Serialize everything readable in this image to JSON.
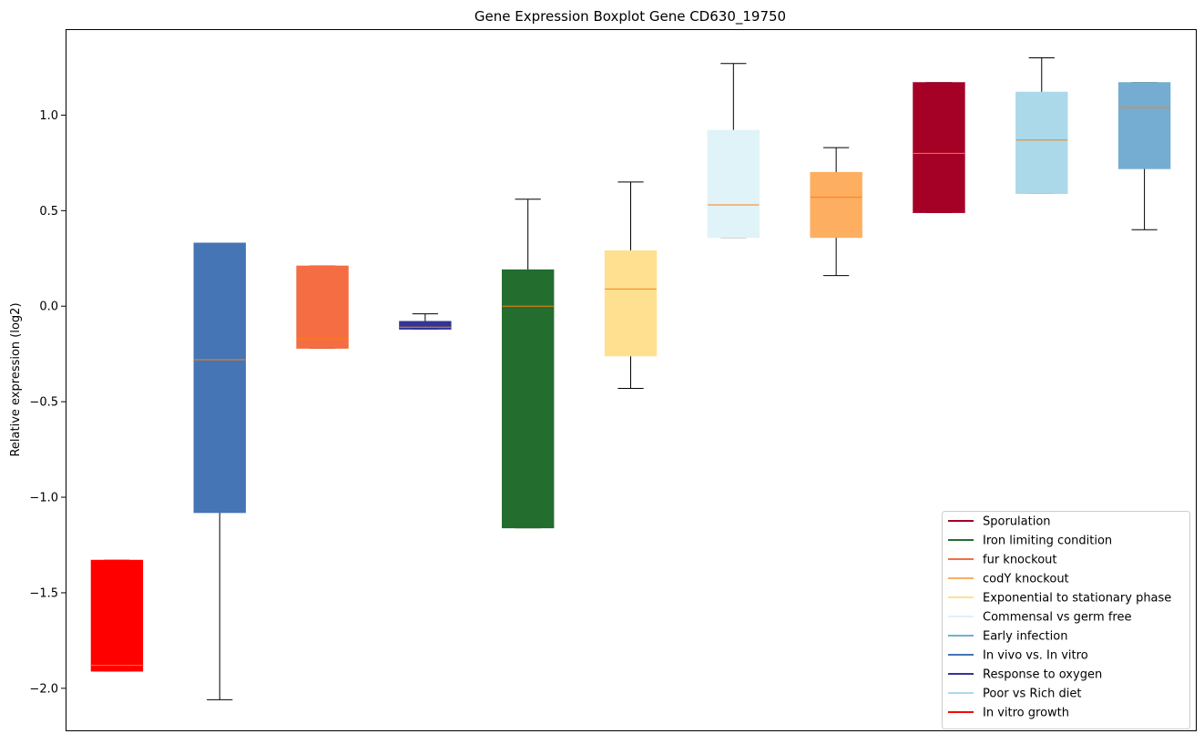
{
  "chart_data": {
    "type": "box",
    "title": "Gene Expression Boxplot Gene CD630_19750",
    "xlabel": "",
    "ylabel": "Relative expression (log2)",
    "ylim": [
      -2.22,
      1.45
    ],
    "yticks": [
      1.0,
      0.5,
      0.0,
      -0.5,
      -1.0,
      -1.5,
      -2.0
    ],
    "ytick_labels": [
      "1.0",
      "0.5",
      "0.0",
      "−0.5",
      "−1.0",
      "−1.5",
      "−2.0"
    ],
    "x_ticks_visible": false,
    "grid": false,
    "median_color": "#ff7f0e",
    "whisker_color": "#000000",
    "series": [
      {
        "name": "In vitro growth",
        "color": "#ff0000",
        "whislo": -1.91,
        "q1": -1.91,
        "med": -1.88,
        "q3": -1.33,
        "whishi": -1.33
      },
      {
        "name": "In vivo vs. In vitro",
        "color": "#4575b4",
        "whislo": -2.06,
        "q1": -1.08,
        "med": -0.28,
        "q3": 0.33,
        "whishi": 0.33
      },
      {
        "name": "fur knockout",
        "color": "#f46d43",
        "whislo": -0.22,
        "q1": -0.22,
        "med": -0.17,
        "q3": 0.21,
        "whishi": 0.21
      },
      {
        "name": "Response to oxygen",
        "color": "#313695",
        "whislo": -0.12,
        "q1": -0.12,
        "med": -0.11,
        "q3": -0.08,
        "whishi": -0.04
      },
      {
        "name": "Iron limiting condition",
        "color": "#236e2f",
        "whislo": -1.16,
        "q1": -1.16,
        "med": 0.0,
        "q3": 0.19,
        "whishi": 0.56
      },
      {
        "name": "Exponential to stationary phase",
        "color": "#fee090",
        "whislo": -0.43,
        "q1": -0.26,
        "med": 0.09,
        "q3": 0.29,
        "whishi": 0.65
      },
      {
        "name": "Commensal vs germ free",
        "color": "#e0f3f8",
        "whislo": 0.36,
        "q1": 0.36,
        "med": 0.53,
        "q3": 0.92,
        "whishi": 1.27
      },
      {
        "name": "codY knockout",
        "color": "#fdae61",
        "whislo": 0.16,
        "q1": 0.36,
        "med": 0.57,
        "q3": 0.7,
        "whishi": 0.83
      },
      {
        "name": "Sporulation",
        "color": "#a50026",
        "whislo": 0.49,
        "q1": 0.49,
        "med": 0.8,
        "q3": 1.17,
        "whishi": 1.17
      },
      {
        "name": "Poor vs Rich diet",
        "color": "#abd9e9",
        "whislo": 0.59,
        "q1": 0.59,
        "med": 0.87,
        "q3": 1.12,
        "whishi": 1.3
      },
      {
        "name": "Early infection",
        "color": "#74add1",
        "whislo": 0.4,
        "q1": 0.72,
        "med": 1.04,
        "q3": 1.17,
        "whishi": 1.17
      }
    ],
    "legend": {
      "placement": "lower-right",
      "entries": [
        {
          "label": "Sporulation",
          "color": "#a50026"
        },
        {
          "label": "Iron limiting condition",
          "color": "#236e2f"
        },
        {
          "label": "fur knockout",
          "color": "#f46d43"
        },
        {
          "label": "codY knockout",
          "color": "#fdae61"
        },
        {
          "label": "Exponential to stationary phase",
          "color": "#fee090"
        },
        {
          "label": "Commensal vs germ free",
          "color": "#e0f3f8"
        },
        {
          "label": "Early infection",
          "color": "#74add1"
        },
        {
          "label": "In vivo vs. In vitro",
          "color": "#4575b4"
        },
        {
          "label": "Response to oxygen",
          "color": "#313695"
        },
        {
          "label": "Poor vs Rich diet",
          "color": "#abd9e9"
        },
        {
          "label": "In vitro growth",
          "color": "#ff0000"
        }
      ]
    }
  }
}
